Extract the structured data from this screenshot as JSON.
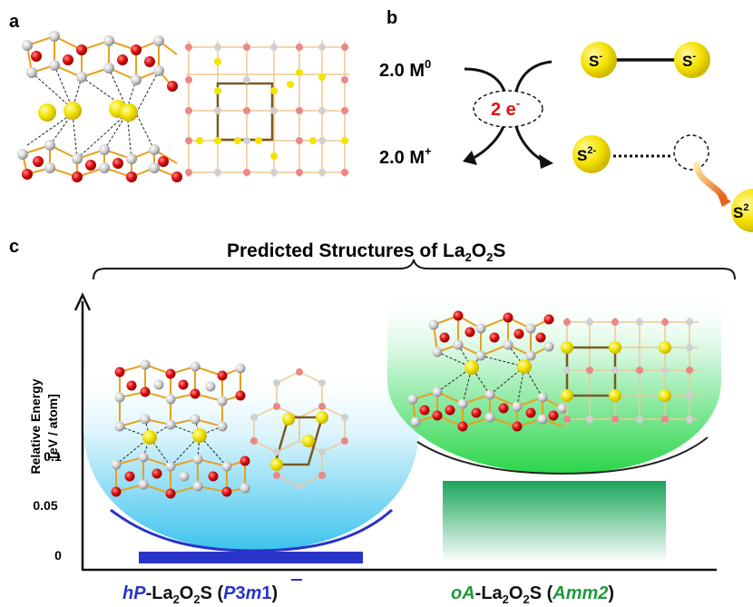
{
  "panels": {
    "a": "a",
    "b": "b",
    "c": "c"
  },
  "panel_b": {
    "m0_text": "2.0 M",
    "m0_sup": "0",
    "mplus_text": "2.0 M",
    "mplus_sup": "+",
    "electrons_text": "2 e",
    "electrons_sup": "-",
    "s_minus_label": "S",
    "s_minus_sup": "-",
    "s2_label": "S",
    "s2_sup": "2-",
    "s2_edge_label": "S",
    "s2_edge_sup": "2"
  },
  "panel_c": {
    "title_pre": "Predicted Structures of La",
    "title_sub1": "2",
    "title_mid": "O",
    "title_sub2": "2",
    "title_post": "S",
    "y_axis_label_line1": "Relative Energy",
    "y_axis_label_line2": "[eV / atom]",
    "y_ticks": [
      "0.1",
      "0.05",
      "0"
    ],
    "left_prefix": "hP",
    "left_mid": "-La",
    "left_sub1": "2",
    "left_o": "O",
    "left_sub2": "2",
    "left_s": "S (",
    "left_sg_p": "P",
    "left_sg_3": "3",
    "left_sg_m": "m",
    "left_sg_1": "1",
    "left_close": ")",
    "right_prefix": "oA",
    "right_mid": "-La",
    "right_sub1": "2",
    "right_o": "O",
    "right_sub2": "2",
    "right_s": "S (",
    "right_sg": "Amm2",
    "right_close": ")"
  },
  "colors": {
    "hp_blue": "#2a34c8",
    "oa_green": "#1e9a3a",
    "red_e": "#e01010",
    "sulfur_yellow": "#f2e400",
    "oxygen_red": "#dd1111",
    "la_gray": "#c8c8c8",
    "bond_orange": "#e8a020",
    "cell_brown": "#7a5a20"
  }
}
